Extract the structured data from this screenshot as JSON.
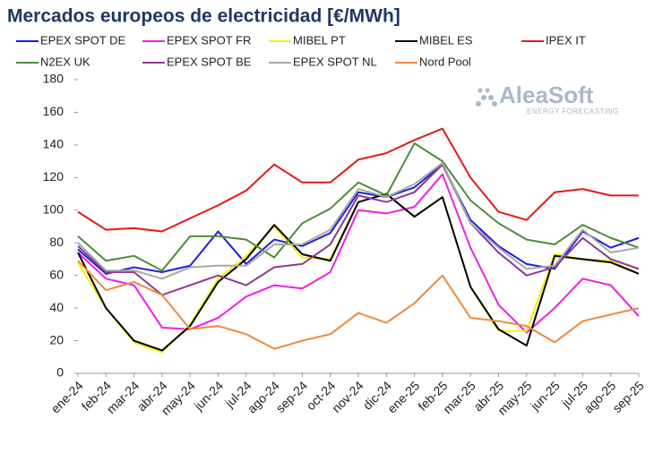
{
  "chart_data": {
    "type": "line",
    "title": "Mercados europeos de electricidad [€/MWh]",
    "watermark": {
      "name": "AleaSoft",
      "tagline": "ENERGY FORECASTING"
    },
    "categories": [
      "ene-24",
      "feb-24",
      "mar-24",
      "abr-24",
      "may-24",
      "jun-24",
      "jul-24",
      "ago-24",
      "sep-24",
      "oct-24",
      "nov-24",
      "dic-24",
      "ene-25",
      "feb-25",
      "mar-25",
      "abr-25",
      "may-25",
      "jun-25",
      "jul-25",
      "ago-25",
      "sep-25"
    ],
    "ylim": [
      0,
      180
    ],
    "yticks": [
      0,
      20,
      40,
      60,
      80,
      100,
      120,
      140,
      160,
      180
    ],
    "grid": false,
    "series": [
      {
        "name": "EPEX SPOT DE",
        "color": "#1f1fe0",
        "values": [
          76,
          61,
          65,
          62,
          66,
          87,
          67,
          82,
          78,
          86,
          111,
          108,
          114,
          128,
          94,
          78,
          67,
          64,
          87,
          77,
          83
        ]
      },
      {
        "name": "EPEX SPOT FR",
        "color": "#ee1ee8",
        "values": [
          74,
          58,
          54,
          28,
          27,
          34,
          47,
          54,
          52,
          62,
          100,
          98,
          102,
          122,
          77,
          42,
          25,
          40,
          58,
          54,
          35
        ]
      },
      {
        "name": "MIBEL PT",
        "color": "#f2f200",
        "values": [
          68,
          40,
          19,
          13,
          30,
          58,
          72,
          90,
          71,
          70,
          105,
          110,
          96,
          108,
          53,
          26,
          26,
          73,
          70,
          69,
          61
        ]
      },
      {
        "name": "MIBEL ES",
        "color": "#000000",
        "values": [
          74,
          40,
          20,
          14,
          29,
          56,
          70,
          91,
          73,
          69,
          105,
          110,
          96,
          108,
          53,
          27,
          17,
          72,
          70,
          68,
          61
        ]
      },
      {
        "name": "IPEX IT",
        "color": "#e81818",
        "values": [
          99,
          88,
          89,
          87,
          95,
          103,
          112,
          128,
          117,
          117,
          131,
          135,
          143,
          150,
          120,
          99,
          94,
          111,
          113,
          109,
          109
        ]
      },
      {
        "name": "N2EX UK",
        "color": "#4a8c3a",
        "values": [
          84,
          69,
          72,
          63,
          84,
          84,
          82,
          71,
          92,
          101,
          117,
          109,
          141,
          130,
          106,
          92,
          82,
          79,
          91,
          83,
          77
        ]
      },
      {
        "name": "EPEX SPOT BE",
        "color": "#8e3a8e",
        "values": [
          78,
          62,
          62,
          48,
          54,
          60,
          54,
          65,
          67,
          79,
          109,
          105,
          111,
          128,
          92,
          74,
          60,
          65,
          83,
          70,
          64
        ]
      },
      {
        "name": "EPEX SPOT NL",
        "color": "#a8a8a8",
        "values": [
          80,
          63,
          63,
          58,
          65,
          66,
          66,
          79,
          79,
          88,
          113,
          108,
          116,
          129,
          92,
          77,
          64,
          66,
          88,
          74,
          77
        ]
      },
      {
        "name": "Nord Pool",
        "color": "#ed8a3c",
        "values": [
          69,
          51,
          56,
          48,
          27,
          29,
          24,
          15,
          20,
          24,
          37,
          31,
          43,
          60,
          34,
          32,
          29,
          19,
          32,
          36,
          40
        ]
      }
    ]
  }
}
